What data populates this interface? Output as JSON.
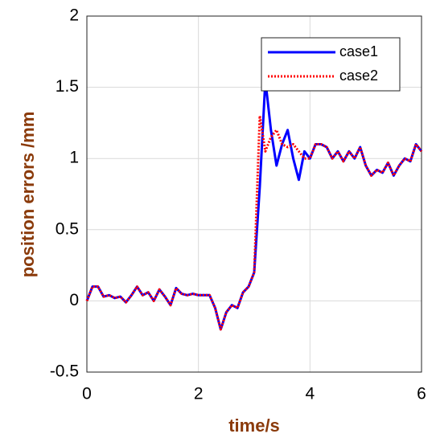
{
  "chart_data": {
    "type": "line",
    "x_label": "time/s",
    "y_label": "position errors /mm",
    "x": [
      0,
      0.1,
      0.2,
      0.3,
      0.4,
      0.5,
      0.6,
      0.7,
      0.8,
      0.9,
      1,
      1.1,
      1.2,
      1.3,
      1.4,
      1.5,
      1.6,
      1.7,
      1.8,
      1.9,
      2,
      2.1,
      2.2,
      2.3,
      2.4,
      2.5,
      2.6,
      2.7,
      2.8,
      2.9,
      3,
      3.1,
      3.2,
      3.3,
      3.4,
      3.5,
      3.6,
      3.7,
      3.8,
      3.9,
      4,
      4.1,
      4.2,
      4.3,
      4.4,
      4.5,
      4.6,
      4.7,
      4.8,
      4.9,
      5,
      5.1,
      5.2,
      5.3,
      5.4,
      5.5,
      5.6,
      5.7,
      5.8,
      5.9,
      6
    ],
    "series": [
      {
        "name": "case1",
        "color": "#0000ff",
        "style": "solid",
        "values": [
          0,
          0.1,
          0.1,
          0.03,
          0.04,
          0.02,
          0.03,
          -0.01,
          0.04,
          0.1,
          0.04,
          0.06,
          0,
          0.08,
          0.03,
          -0.03,
          0.09,
          0.05,
          0.04,
          0.05,
          0.04,
          0.04,
          0.04,
          -0.05,
          -0.2,
          -0.08,
          -0.03,
          -0.05,
          0.06,
          0.1,
          0.2,
          0.8,
          1.55,
          1.2,
          0.95,
          1.1,
          1.2,
          1,
          0.85,
          1.05,
          1,
          1.1,
          1.1,
          1.08,
          1,
          1.05,
          0.98,
          1.05,
          1,
          1.08,
          0.95,
          0.88,
          0.92,
          0.9,
          0.97,
          0.88,
          0.95,
          1,
          0.98,
          1.1,
          1.05
        ]
      },
      {
        "name": "case2",
        "color": "#ff0000",
        "style": "dotted",
        "values": [
          0,
          0.1,
          0.1,
          0.03,
          0.04,
          0.02,
          0.03,
          -0.01,
          0.04,
          0.1,
          0.04,
          0.06,
          0,
          0.08,
          0.03,
          -0.03,
          0.09,
          0.05,
          0.04,
          0.05,
          0.04,
          0.04,
          0.04,
          -0.05,
          -0.2,
          -0.08,
          -0.03,
          -0.05,
          0.06,
          0.1,
          0.2,
          1.3,
          1.05,
          1.15,
          1.2,
          1.1,
          1.08,
          1.1,
          1.05,
          1,
          1,
          1.1,
          1.1,
          1.08,
          1,
          1.05,
          0.98,
          1.05,
          1,
          1.08,
          0.95,
          0.88,
          0.92,
          0.9,
          0.97,
          0.88,
          0.95,
          1,
          0.98,
          1.1,
          1.05
        ]
      }
    ],
    "xlim": [
      0,
      6
    ],
    "xticks": [
      0,
      2,
      4,
      6
    ],
    "ylim": [
      -0.5,
      2
    ],
    "yticks": [
      -0.5,
      0,
      0.5,
      1,
      1.5,
      2
    ],
    "grid": true,
    "legend": "upper right"
  }
}
